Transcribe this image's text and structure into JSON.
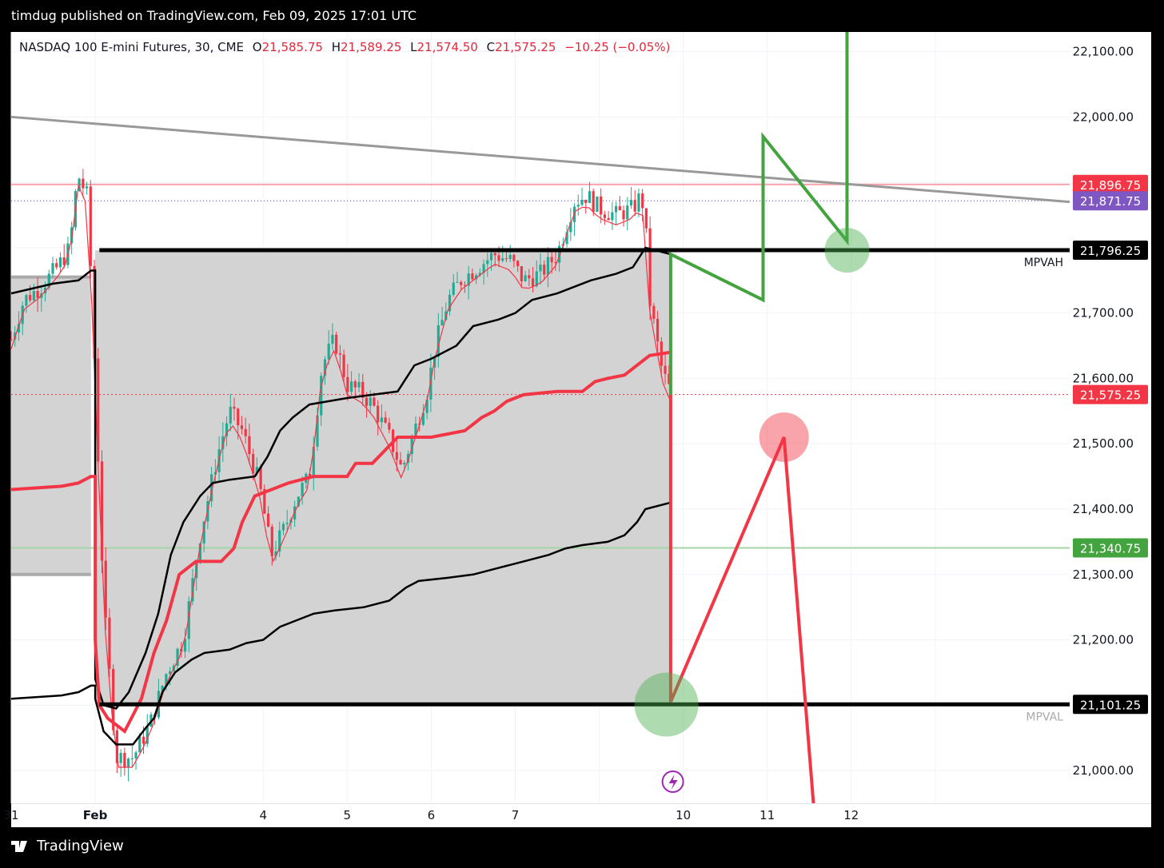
{
  "header": {
    "publish_line": "timdug published on TradingView.com, Feb 09, 2025 17:01 UTC"
  },
  "legend": {
    "symbol": "NASDAQ 100 E-mini Futures, 30, CME",
    "open_key": "O",
    "open": "21,585.75",
    "high_key": "H",
    "high": "21,589.25",
    "low_key": "L",
    "low": "21,574.50",
    "close_key": "C",
    "close": "21,575.25",
    "change": "−10.25 (−0.05%)"
  },
  "footer": {
    "brand": "TradingView"
  },
  "colors": {
    "up": "#22ab94",
    "down": "#f23645",
    "vwap": "#f23645",
    "band": "#000000",
    "box": "#d3d3d3",
    "green_path": "#43a33f",
    "red_path": "#f23645",
    "trend": "#999999",
    "price_line": "#f23645"
  },
  "chart_data": {
    "type": "candlestick",
    "y_axis": {
      "min": 20950,
      "max": 22130,
      "ticks": [
        21000,
        21100,
        21200,
        21300,
        21400,
        21500,
        21600,
        21700,
        21800,
        21900,
        22000,
        22100
      ],
      "tick_labels": [
        "21,000.00",
        "",
        "21,200.00",
        "21,300.00",
        "21,400.00",
        "21,500.00",
        "21,600.00",
        "21,700.00",
        "",
        "",
        "22,000.00",
        "22,100.00"
      ]
    },
    "x_axis": {
      "min": 0,
      "max": 12.6,
      "ticks": [
        0,
        1,
        3,
        4,
        5,
        6,
        7,
        8,
        9,
        10,
        11
      ],
      "tick_labels": [
        "31",
        "Feb",
        "4",
        "5",
        "6",
        "7",
        "10",
        "11",
        "12"
      ],
      "tick_positions": [
        0,
        1,
        3,
        4,
        5,
        6,
        8,
        9,
        10
      ]
    },
    "price_labels": [
      {
        "value": 21896.75,
        "label": "21,896.75",
        "bg": "#f23645"
      },
      {
        "value": 21871.75,
        "label": "21,871.75",
        "bg": "#7e57c2"
      },
      {
        "value": 21796.25,
        "label": "21,796.25",
        "bg": "#000000"
      },
      {
        "value": 21575.25,
        "label": "21,575.25",
        "bg": "#f23645"
      },
      {
        "value": 21340.75,
        "label": "21,340.75",
        "bg": "#43a33f"
      },
      {
        "value": 21101.25,
        "label": "21,101.25",
        "bg": "#000000"
      }
    ],
    "levels": {
      "mpvah": {
        "value": 21796.25,
        "label": "MPVAH"
      },
      "mpval": {
        "value": 21101.25,
        "label": "MPVAL"
      }
    },
    "candle_path": [
      [
        0.0,
        21660
      ],
      [
        0.15,
        21720
      ],
      [
        0.35,
        21740
      ],
      [
        0.55,
        21770
      ],
      [
        0.7,
        21800
      ],
      [
        0.75,
        21870
      ],
      [
        0.8,
        21910
      ],
      [
        0.9,
        21880
      ],
      [
        0.95,
        21760
      ],
      [
        1.0,
        21600
      ],
      [
        1.1,
        21260
      ],
      [
        1.25,
        21020
      ],
      [
        1.45,
        21020
      ],
      [
        1.65,
        21070
      ],
      [
        1.85,
        21150
      ],
      [
        2.05,
        21200
      ],
      [
        2.25,
        21360
      ],
      [
        2.45,
        21480
      ],
      [
        2.6,
        21550
      ],
      [
        2.75,
        21520
      ],
      [
        2.95,
        21440
      ],
      [
        3.1,
        21330
      ],
      [
        3.25,
        21370
      ],
      [
        3.4,
        21420
      ],
      [
        3.55,
        21450
      ],
      [
        3.7,
        21620
      ],
      [
        3.85,
        21660
      ],
      [
        4.0,
        21590
      ],
      [
        4.15,
        21580
      ],
      [
        4.3,
        21560
      ],
      [
        4.5,
        21510
      ],
      [
        4.65,
        21460
      ],
      [
        4.8,
        21520
      ],
      [
        4.95,
        21580
      ],
      [
        5.05,
        21650
      ],
      [
        5.2,
        21720
      ],
      [
        5.35,
        21750
      ],
      [
        5.55,
        21770
      ],
      [
        5.75,
        21790
      ],
      [
        5.95,
        21780
      ],
      [
        6.1,
        21750
      ],
      [
        6.3,
        21760
      ],
      [
        6.5,
        21790
      ],
      [
        6.7,
        21870
      ],
      [
        6.85,
        21880
      ],
      [
        7.0,
        21860
      ],
      [
        7.2,
        21850
      ],
      [
        7.4,
        21860
      ],
      [
        7.5,
        21880
      ],
      [
        7.55,
        21840
      ],
      [
        7.6,
        21720
      ],
      [
        7.75,
        21610
      ],
      [
        7.85,
        21580
      ]
    ],
    "vwap_red": [
      [
        0,
        21430
      ],
      [
        0.6,
        21435
      ],
      [
        0.8,
        21440
      ],
      [
        0.95,
        21450
      ],
      [
        1.0,
        21450
      ],
      [
        1.0,
        21200
      ],
      [
        1.05,
        21100
      ],
      [
        1.15,
        21080
      ],
      [
        1.35,
        21060
      ],
      [
        1.55,
        21110
      ],
      [
        1.7,
        21180
      ],
      [
        1.85,
        21230
      ],
      [
        2.0,
        21300
      ],
      [
        2.2,
        21320
      ],
      [
        2.5,
        21320
      ],
      [
        2.65,
        21340
      ],
      [
        2.75,
        21380
      ],
      [
        2.9,
        21420
      ],
      [
        3.1,
        21430
      ],
      [
        3.3,
        21440
      ],
      [
        3.6,
        21450
      ],
      [
        4.0,
        21450
      ],
      [
        4.1,
        21470
      ],
      [
        4.3,
        21470
      ],
      [
        4.45,
        21490
      ],
      [
        4.6,
        21510
      ],
      [
        5.0,
        21510
      ],
      [
        5.4,
        21520
      ],
      [
        5.6,
        21540
      ],
      [
        5.75,
        21550
      ],
      [
        5.9,
        21565
      ],
      [
        6.1,
        21575
      ],
      [
        6.5,
        21580
      ],
      [
        6.8,
        21580
      ],
      [
        6.95,
        21595
      ],
      [
        7.1,
        21600
      ],
      [
        7.3,
        21605
      ],
      [
        7.45,
        21620
      ],
      [
        7.6,
        21635
      ],
      [
        7.85,
        21640
      ]
    ],
    "band_upper": [
      [
        0,
        21730
      ],
      [
        0.5,
        21745
      ],
      [
        0.8,
        21750
      ],
      [
        0.95,
        21765
      ],
      [
        1.0,
        21765
      ],
      [
        1.0,
        21140
      ],
      [
        1.1,
        21100
      ],
      [
        1.25,
        21095
      ],
      [
        1.4,
        21120
      ],
      [
        1.6,
        21180
      ],
      [
        1.75,
        21240
      ],
      [
        1.9,
        21330
      ],
      [
        2.05,
        21380
      ],
      [
        2.25,
        21420
      ],
      [
        2.4,
        21440
      ],
      [
        2.6,
        21445
      ],
      [
        2.9,
        21450
      ],
      [
        3.05,
        21480
      ],
      [
        3.2,
        21520
      ],
      [
        3.35,
        21540
      ],
      [
        3.55,
        21560
      ],
      [
        4.0,
        21570
      ],
      [
        4.3,
        21575
      ],
      [
        4.6,
        21580
      ],
      [
        4.8,
        21620
      ],
      [
        5.0,
        21630
      ],
      [
        5.3,
        21650
      ],
      [
        5.5,
        21680
      ],
      [
        5.8,
        21690
      ],
      [
        6.0,
        21700
      ],
      [
        6.2,
        21720
      ],
      [
        6.5,
        21730
      ],
      [
        6.7,
        21740
      ],
      [
        6.9,
        21750
      ],
      [
        7.2,
        21760
      ],
      [
        7.4,
        21770
      ],
      [
        7.5,
        21790
      ],
      [
        7.55,
        21800
      ],
      [
        7.85,
        21790
      ]
    ],
    "band_lower": [
      [
        0,
        21110
      ],
      [
        0.6,
        21115
      ],
      [
        0.8,
        21120
      ],
      [
        0.95,
        21130
      ],
      [
        1.0,
        21130
      ],
      [
        1.0,
        21110
      ],
      [
        1.1,
        21060
      ],
      [
        1.25,
        21040
      ],
      [
        1.45,
        21040
      ],
      [
        1.6,
        21065
      ],
      [
        1.7,
        21080
      ],
      [
        1.8,
        21120
      ],
      [
        1.95,
        21150
      ],
      [
        2.15,
        21170
      ],
      [
        2.3,
        21180
      ],
      [
        2.6,
        21185
      ],
      [
        2.8,
        21195
      ],
      [
        3.0,
        21200
      ],
      [
        3.2,
        21220
      ],
      [
        3.4,
        21230
      ],
      [
        3.6,
        21240
      ],
      [
        3.85,
        21245
      ],
      [
        4.2,
        21250
      ],
      [
        4.5,
        21260
      ],
      [
        4.7,
        21280
      ],
      [
        4.85,
        21290
      ],
      [
        5.2,
        21295
      ],
      [
        5.5,
        21300
      ],
      [
        5.8,
        21310
      ],
      [
        6.1,
        21320
      ],
      [
        6.4,
        21330
      ],
      [
        6.6,
        21340
      ],
      [
        6.8,
        21345
      ],
      [
        7.1,
        21350
      ],
      [
        7.3,
        21360
      ],
      [
        7.45,
        21380
      ],
      [
        7.55,
        21400
      ],
      [
        7.85,
        21410
      ]
    ],
    "trend_line": {
      "from": [
        0.0,
        22000
      ],
      "to": [
        12.6,
        21870
      ]
    },
    "projections": {
      "green": [
        [
          7.85,
          21575
        ],
        [
          7.85,
          21790
        ],
        [
          8.95,
          21720
        ],
        [
          8.95,
          21970
        ],
        [
          9.95,
          21810
        ],
        [
          9.95,
          22130
        ]
      ],
      "red": [
        [
          7.85,
          21575
        ],
        [
          7.85,
          21105
        ],
        [
          9.2,
          21510
        ],
        [
          9.55,
          20950
        ]
      ]
    },
    "markers": [
      {
        "x": 9.95,
        "y": 21796,
        "color": "green"
      },
      {
        "x": 9.2,
        "y": 21510,
        "color": "red"
      },
      {
        "x": 7.8,
        "y": 21101,
        "color": "green"
      }
    ]
  }
}
